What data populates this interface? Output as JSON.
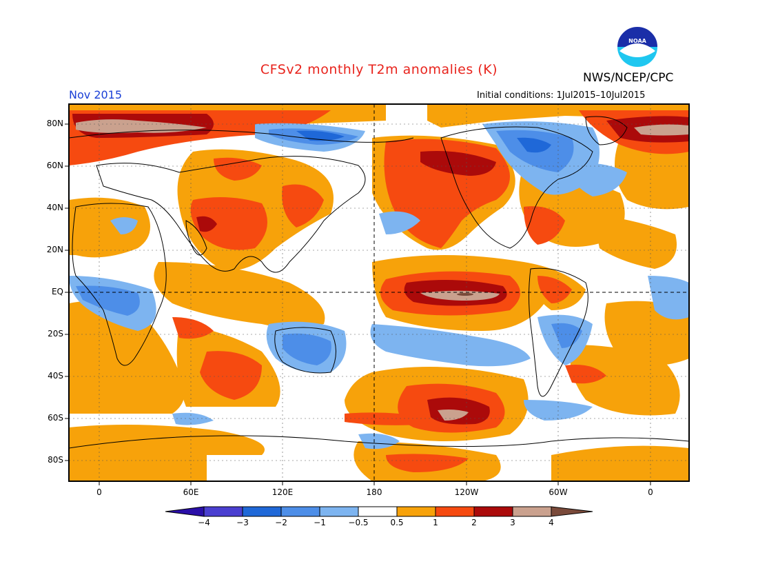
{
  "title": "CFSv2 monthly T2m anomalies (K)",
  "agency": "NWS/NCEP/CPC",
  "logo_text": "NOAA",
  "valid_month": "Nov 2015",
  "initial_conditions": "Initial conditions: 1Jul2015–10Jul2015",
  "lat_labels": [
    "80N",
    "60N",
    "40N",
    "20N",
    "EQ",
    "20S",
    "40S",
    "60S",
    "80S"
  ],
  "lon_labels": [
    "0",
    "60E",
    "120E",
    "180",
    "120W",
    "60W",
    "0"
  ],
  "colorbar": {
    "labels": [
      "−4",
      "−3",
      "−2",
      "−1",
      "−0.5",
      "0.5",
      "1",
      "2",
      "3",
      "4"
    ],
    "colors": [
      "#2a0fa8",
      "#4a3fd0",
      "#1f68d8",
      "#4d8ee8",
      "#7db4f0",
      "#ffffff",
      "#f7a20a",
      "#f64a10",
      "#ab0a0a",
      "#caa18e",
      "#7a4a3a"
    ]
  }
}
